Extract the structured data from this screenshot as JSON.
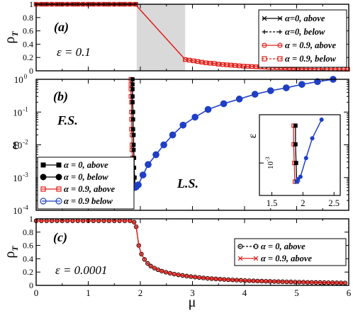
{
  "chart_data": [
    {
      "panel_label": "(a)",
      "type": "line",
      "ylabel": "ρ",
      "ylabel_sub": "T",
      "annotation": "ε = 0.1",
      "xlim": [
        0,
        6
      ],
      "ylim": [
        0,
        1
      ],
      "x_ticks": [
        0,
        1,
        2,
        3,
        4,
        5,
        6
      ],
      "y_ticks": [
        0,
        0.2,
        0.4,
        0.6,
        0.8,
        1
      ],
      "y_tick_labels": [
        "0",
        "0.2",
        "0.4",
        "0.6",
        "0.8",
        "1"
      ],
      "shaded_region": {
        "x_range": [
          1.93,
          2.86
        ],
        "color": "#d9d9d9"
      },
      "legend": {
        "location": "top-right",
        "entries": [
          {
            "label": "α=0, above",
            "color": "#000000",
            "marker": "x",
            "line": "solid"
          },
          {
            "label": "α=0, below",
            "color": "#000000",
            "marker": "+",
            "line": "dashed"
          },
          {
            "label": "α = 0.9, above",
            "color": "#e0201b",
            "marker": "circle",
            "line": "solid"
          },
          {
            "label": "α = 0.9, below",
            "color": "#e0201b",
            "marker": "square",
            "line": "dashed"
          }
        ]
      },
      "series": [
        {
          "name": "α=0, above",
          "x": [
            0.0,
            0.06,
            0.12,
            0.18,
            0.24,
            0.3,
            0.36,
            0.42,
            0.48,
            0.54,
            0.6,
            0.66,
            0.72,
            0.78,
            0.84,
            0.9,
            0.96,
            1.02,
            1.08,
            1.14,
            1.2,
            1.26,
            1.32,
            1.38,
            1.44,
            1.5,
            1.56,
            1.62,
            1.68,
            1.74,
            1.8,
            1.86,
            1.92
          ],
          "y": [
            1,
            1,
            1,
            1,
            1,
            1,
            1,
            1,
            1,
            1,
            1,
            1,
            1,
            1,
            1,
            1,
            1,
            1,
            1,
            1,
            1,
            1,
            1,
            1,
            1,
            1,
            1,
            1,
            1,
            1,
            1,
            1,
            1
          ]
        },
        {
          "name": "α = 0.9, below",
          "x": [
            0.0,
            0.1,
            0.2,
            0.3,
            0.4,
            0.5,
            0.6,
            0.7,
            0.8,
            0.9,
            1.0,
            1.1,
            1.2,
            1.3,
            1.4,
            1.5,
            1.6,
            1.7,
            1.8,
            1.9,
            2.86,
            2.94,
            3.02,
            3.1,
            3.18,
            3.26,
            3.34,
            3.42,
            3.5,
            3.58,
            3.66,
            3.74,
            3.82,
            3.9,
            3.98,
            4.06,
            4.14,
            4.22,
            4.3,
            4.38,
            4.46,
            4.54,
            4.62,
            4.7,
            4.78,
            4.86,
            4.94,
            5.02,
            5.1,
            5.18,
            5.26,
            5.34,
            5.42,
            5.5,
            5.58,
            5.66,
            5.74,
            5.82,
            5.9,
            5.98
          ],
          "y": [
            1,
            1,
            1,
            1,
            1,
            1,
            1,
            1,
            1,
            1,
            1,
            1,
            1,
            1,
            1,
            1,
            1,
            1,
            1,
            1,
            0.17,
            0.16,
            0.15,
            0.14,
            0.13,
            0.12,
            0.115,
            0.11,
            0.1,
            0.095,
            0.09,
            0.085,
            0.08,
            0.075,
            0.07,
            0.067,
            0.064,
            0.061,
            0.058,
            0.055,
            0.052,
            0.05,
            0.048,
            0.046,
            0.044,
            0.042,
            0.04,
            0.038,
            0.036,
            0.034,
            0.033,
            0.032,
            0.031,
            0.03,
            0.029,
            0.028,
            0.027,
            0.026,
            0.025,
            0.024
          ]
        }
      ]
    },
    {
      "panel_label": "(b)",
      "type": "line",
      "ylabel": "ε",
      "y_scale": "log",
      "xlim": [
        0,
        6
      ],
      "ylim": [
        0.0001,
        1
      ],
      "x_ticks": [
        0,
        1,
        2,
        3,
        4,
        5,
        6
      ],
      "y_ticks": [
        0.0001,
        0.001,
        0.01,
        0.1,
        1
      ],
      "y_tick_base": "10",
      "y_tick_exponents": [
        "-4",
        "-3",
        "-2",
        "-1",
        "0"
      ],
      "region_labels": [
        "F.S.",
        "L.S."
      ],
      "legend": {
        "location": "bottom-left",
        "entries": [
          {
            "label": "α = 0, above",
            "color": "#000000",
            "marker": "square-filled",
            "line": "solid"
          },
          {
            "label": "α = 0, below",
            "color": "#000000",
            "marker": "circle-filled",
            "line": "solid"
          },
          {
            "label": "α = 0.9, above",
            "color": "#e0201b",
            "marker": "square",
            "line": "solid"
          },
          {
            "label": "α = 0.9 below",
            "color": "#1f3fc4",
            "marker": "circle",
            "line": "solid"
          }
        ]
      },
      "series": [
        {
          "name": "α = 0, above",
          "x": [
            1.85,
            1.85,
            1.85,
            1.85,
            1.85,
            1.86,
            1.86,
            1.86,
            1.87,
            1.87,
            1.87,
            1.88,
            1.88,
            1.89,
            1.9
          ],
          "y": [
            1,
            0.7,
            0.5,
            0.3,
            0.2,
            0.1,
            0.06,
            0.03,
            0.02,
            0.01,
            0.007,
            0.004,
            0.002,
            0.001,
            0.0005
          ]
        },
        {
          "name": "α = 0, below",
          "x": [
            1.9,
            1.92,
            1.96,
            2.05,
            2.15,
            2.3,
            2.45,
            2.62,
            2.82,
            3.05,
            3.3,
            3.6,
            3.9,
            4.2,
            4.5,
            4.8,
            5.1,
            5.4,
            5.7
          ],
          "y": [
            0.0005,
            0.00055,
            0.0006,
            0.0012,
            0.0025,
            0.005,
            0.01,
            0.02,
            0.04,
            0.07,
            0.12,
            0.18,
            0.25,
            0.35,
            0.45,
            0.55,
            0.7,
            0.85,
            1.0
          ]
        },
        {
          "name": "α = 0.9 below",
          "x": [
            1.9,
            1.92,
            1.96,
            2.05,
            2.15,
            2.3,
            2.45,
            2.62,
            2.82,
            3.05,
            3.3,
            3.6,
            3.9,
            4.2,
            4.5,
            4.8,
            5.1,
            5.4,
            5.7
          ],
          "y": [
            0.0005,
            0.00052,
            0.0006,
            0.0012,
            0.0025,
            0.005,
            0.01,
            0.02,
            0.04,
            0.07,
            0.12,
            0.18,
            0.25,
            0.35,
            0.45,
            0.55,
            0.7,
            0.85,
            1.0
          ]
        },
        {
          "name": "α = 0.9, above",
          "x": [
            1.82,
            1.82,
            1.82,
            1.82,
            1.83,
            1.83,
            1.83,
            1.83,
            1.84,
            1.84,
            1.84,
            1.85,
            1.85,
            1.86,
            1.87
          ],
          "y": [
            1,
            0.7,
            0.5,
            0.3,
            0.2,
            0.1,
            0.06,
            0.03,
            0.02,
            0.01,
            0.007,
            0.004,
            0.002,
            0.001,
            0.0005
          ]
        }
      ],
      "inset": {
        "ylabel": "ε",
        "y_tick_base": "10",
        "y_tick_exponent": "-3",
        "x_ticks": [
          1.5,
          2,
          2.5
        ],
        "x_tick_labels": [
          "1.5",
          "2",
          "2.5"
        ],
        "xlim": [
          1.3,
          2.6
        ],
        "y_scale": "log",
        "ylim": [
          0.0003,
          0.006
        ]
      }
    },
    {
      "panel_label": "(c)",
      "type": "line",
      "ylabel": "ρ",
      "ylabel_sub": "T",
      "xlabel": "μ",
      "annotation": "ε = 0.0001",
      "xlim": [
        0,
        6
      ],
      "ylim": [
        0,
        1
      ],
      "x_ticks": [
        0,
        1,
        2,
        3,
        4,
        5,
        6
      ],
      "x_tick_labels": [
        "0",
        "1",
        "2",
        "3",
        "4",
        "5",
        "6"
      ],
      "y_ticks": [
        0,
        0.2,
        0.4,
        0.6,
        0.8,
        1
      ],
      "y_tick_labels": [
        "0",
        "0.2",
        "0.4",
        "0.6",
        "0.8",
        "1"
      ],
      "legend": {
        "location": "top-right",
        "entries": [
          {
            "label": "α = 0, above",
            "color": "#000000",
            "marker": "circle",
            "line": "dashed"
          },
          {
            "label": "α = 0.9, above",
            "color": "#e0201b",
            "marker": "x",
            "line": "solid"
          }
        ]
      },
      "series": [
        {
          "name": "α = 0, above",
          "x": [
            0.0,
            0.1,
            0.2,
            0.3,
            0.4,
            0.5,
            0.6,
            0.7,
            0.8,
            0.9,
            1.0,
            1.1,
            1.2,
            1.3,
            1.4,
            1.5,
            1.6,
            1.7,
            1.8,
            1.88,
            1.92,
            1.97,
            2.02,
            2.08,
            2.14,
            2.2,
            2.27,
            2.34,
            2.41,
            2.49,
            2.57,
            2.65,
            2.73,
            2.81,
            2.89,
            2.97,
            3.05,
            3.13,
            3.21,
            3.29,
            3.37,
            3.45,
            3.53,
            3.61,
            3.69,
            3.77,
            3.85,
            3.93,
            4.01,
            4.09,
            4.17,
            4.25,
            4.33,
            4.41,
            4.49,
            4.57,
            4.65,
            4.73,
            4.81,
            4.89,
            4.97,
            5.05,
            5.13,
            5.21,
            5.29,
            5.37,
            5.45,
            5.53,
            5.61,
            5.69,
            5.77,
            5.85,
            5.93
          ],
          "y": [
            0.97,
            0.97,
            0.97,
            0.97,
            0.97,
            0.97,
            0.97,
            0.97,
            0.97,
            0.97,
            0.97,
            0.97,
            0.97,
            0.97,
            0.97,
            0.97,
            0.97,
            0.97,
            0.97,
            0.95,
            0.88,
            0.6,
            0.47,
            0.39,
            0.33,
            0.29,
            0.26,
            0.235,
            0.215,
            0.198,
            0.183,
            0.17,
            0.159,
            0.149,
            0.14,
            0.132,
            0.125,
            0.118,
            0.112,
            0.106,
            0.101,
            0.097,
            0.093,
            0.089,
            0.085,
            0.082,
            0.079,
            0.076,
            0.073,
            0.07,
            0.068,
            0.066,
            0.064,
            0.062,
            0.06,
            0.058,
            0.056,
            0.055,
            0.053,
            0.052,
            0.05,
            0.049,
            0.048,
            0.046,
            0.045,
            0.044,
            0.043,
            0.042,
            0.041,
            0.04,
            0.039,
            0.038,
            0.037
          ]
        }
      ]
    }
  ]
}
